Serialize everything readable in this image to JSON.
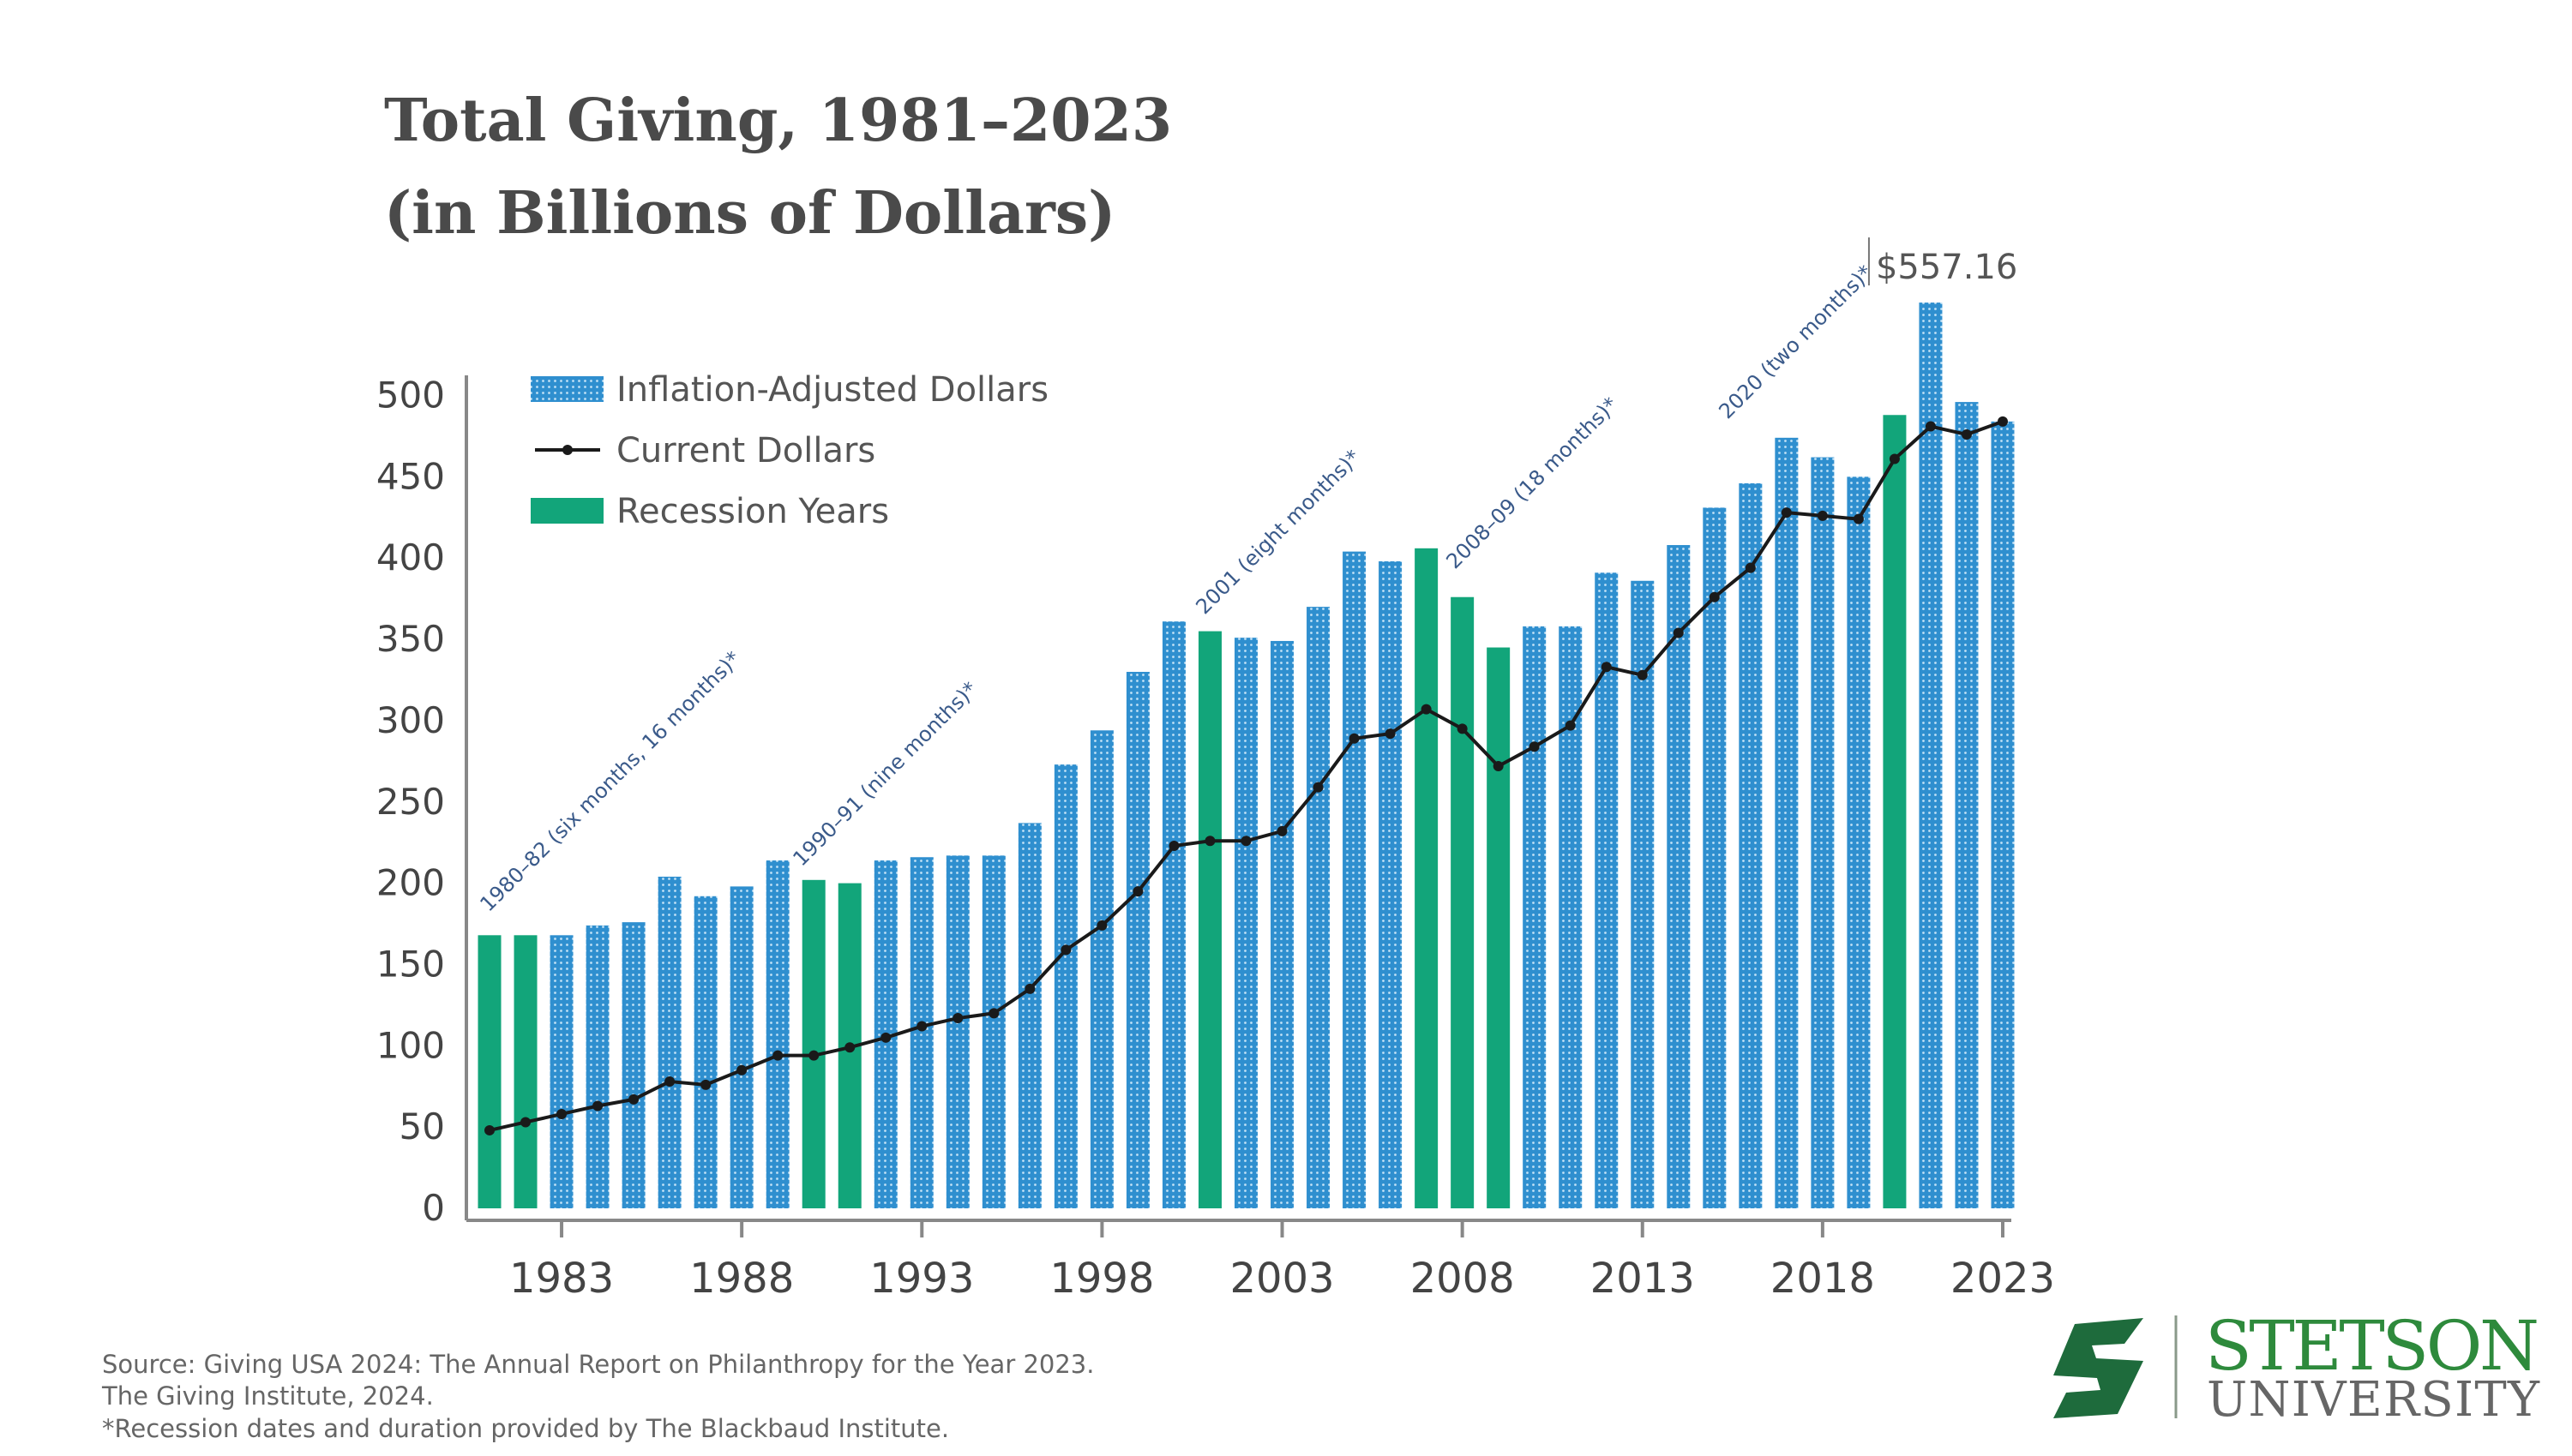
{
  "chart_data": {
    "type": "bar",
    "title": [
      "Total Giving, 1981–2023",
      "(in Billions of Dollars)"
    ],
    "x": [
      1981,
      1982,
      1983,
      1984,
      1985,
      1986,
      1987,
      1988,
      1989,
      1990,
      1991,
      1992,
      1993,
      1994,
      1995,
      1996,
      1997,
      1998,
      1999,
      2000,
      2001,
      2002,
      2003,
      2004,
      2005,
      2006,
      2007,
      2008,
      2009,
      2010,
      2011,
      2012,
      2013,
      2014,
      2015,
      2016,
      2017,
      2018,
      2019,
      2020,
      2021,
      2022,
      2023
    ],
    "xticks": [
      1983,
      1988,
      1993,
      1998,
      2003,
      2008,
      2013,
      2018,
      2023
    ],
    "ylim": [
      0,
      500
    ],
    "yticks": [
      0,
      50,
      100,
      150,
      200,
      250,
      300,
      350,
      400,
      450,
      500
    ],
    "series": [
      {
        "name": "Inflation-Adjusted Dollars",
        "color": "#2f8fcf",
        "values": [
          168,
          168,
          168,
          174,
          176,
          204,
          192,
          198,
          214,
          202,
          200,
          214,
          216,
          217,
          217,
          237,
          273,
          294,
          330,
          361,
          355,
          351,
          349,
          370,
          404,
          398,
          406,
          376,
          345,
          358,
          358,
          391,
          386,
          408,
          431,
          446,
          474,
          462,
          450,
          488,
          557.16,
          496,
          484
        ],
        "value_labels": [
          null,
          null,
          null,
          null,
          null,
          null,
          null,
          null,
          null,
          null,
          null,
          null,
          null,
          null,
          null,
          null,
          null,
          null,
          null,
          null,
          null,
          null,
          null,
          null,
          null,
          null,
          null,
          null,
          null,
          null,
          null,
          null,
          null,
          null,
          null,
          null,
          null,
          null,
          null,
          null,
          "$557.16",
          null,
          null
        ]
      },
      {
        "name": "Current Dollars",
        "type": "line",
        "color": "#1a1a1a",
        "values": [
          48,
          53,
          58,
          63,
          67,
          78,
          76,
          85,
          94,
          94,
          99,
          105,
          112,
          117,
          120,
          135,
          159,
          174,
          195,
          223,
          226,
          226,
          232,
          259,
          289,
          292,
          307,
          295,
          272,
          284,
          297,
          333,
          328,
          354,
          376,
          394,
          428,
          426,
          424,
          461,
          481,
          476,
          484
        ]
      }
    ],
    "recession": {
      "name": "Recession Years",
      "color": "#12a57a",
      "years": [
        1981,
        1982,
        1990,
        1991,
        2001,
        2007,
        2008,
        2009,
        2020
      ]
    },
    "annotations": [
      "1980–82 (six months, 16 months)*",
      "1990–91 (nine months)*",
      "2001 (eight months)*",
      "2008–09 (18 months)*",
      "2020 (two months)*"
    ],
    "source": [
      "Source: Giving USA 2024: The Annual Report on Philanthropy for the Year 2023.",
      "The Giving Institute, 2024.",
      "*Recession dates and duration provided by The Blackbaud Institute."
    ]
  },
  "logo": {
    "name": "STETSON",
    "subtitle": "UNIVERSITY"
  }
}
